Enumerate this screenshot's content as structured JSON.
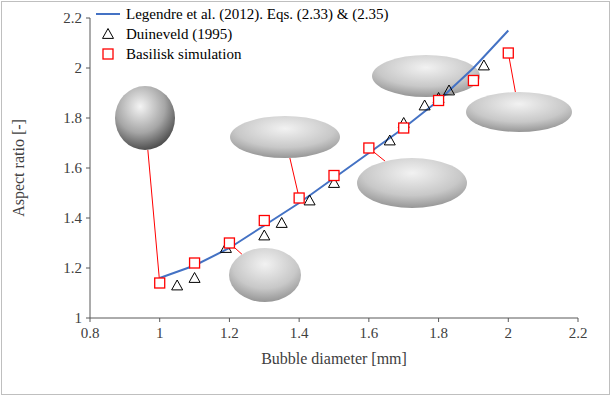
{
  "chart_data": {
    "type": "scatter",
    "x_label": "Bubble diameter [mm]",
    "y_label": "Aspect ratio [-]",
    "xlim": [
      0.8,
      2.2
    ],
    "xticks": [
      0.8,
      1,
      1.2,
      1.4,
      1.6,
      1.8,
      2,
      2.2
    ],
    "ylim": [
      1,
      2.2
    ],
    "yticks": [
      1,
      1.2,
      1.4,
      1.6,
      1.8,
      2,
      2.2
    ],
    "grid": false,
    "legend": "top-left",
    "series": [
      {
        "name": "Legendre et al. (2012). Eqs. (2.33) & (2.35)",
        "type": "line",
        "color": "#4472c4",
        "line_style": "solid",
        "marker": "none",
        "x": [
          1,
          1.1,
          1.2,
          1.3,
          1.4,
          1.5,
          1.6,
          1.7,
          1.8,
          1.9,
          2
        ],
        "values": [
          1.16,
          1.21,
          1.28,
          1.37,
          1.46,
          1.56,
          1.66,
          1.76,
          1.87,
          2.0,
          2.15
        ]
      },
      {
        "name": "Duineveld (1995)",
        "type": "scatter",
        "color": "#000000",
        "marker": "triangle",
        "x": [
          1.05,
          1.1,
          1.19,
          1.3,
          1.35,
          1.43,
          1.5,
          1.66,
          1.7,
          1.76,
          1.8,
          1.83,
          1.93
        ],
        "values": [
          1.13,
          1.16,
          1.28,
          1.33,
          1.38,
          1.47,
          1.54,
          1.71,
          1.78,
          1.85,
          1.88,
          1.91,
          2.01
        ]
      },
      {
        "name": "Basilisk simulation",
        "type": "scatter",
        "color": "#ff0000",
        "marker": "square",
        "x": [
          1,
          1.1,
          1.2,
          1.3,
          1.4,
          1.5,
          1.6,
          1.7,
          1.8,
          1.9,
          2
        ],
        "values": [
          1.14,
          1.22,
          1.3,
          1.39,
          1.48,
          1.57,
          1.68,
          1.76,
          1.87,
          1.95,
          2.06
        ]
      }
    ]
  }
}
